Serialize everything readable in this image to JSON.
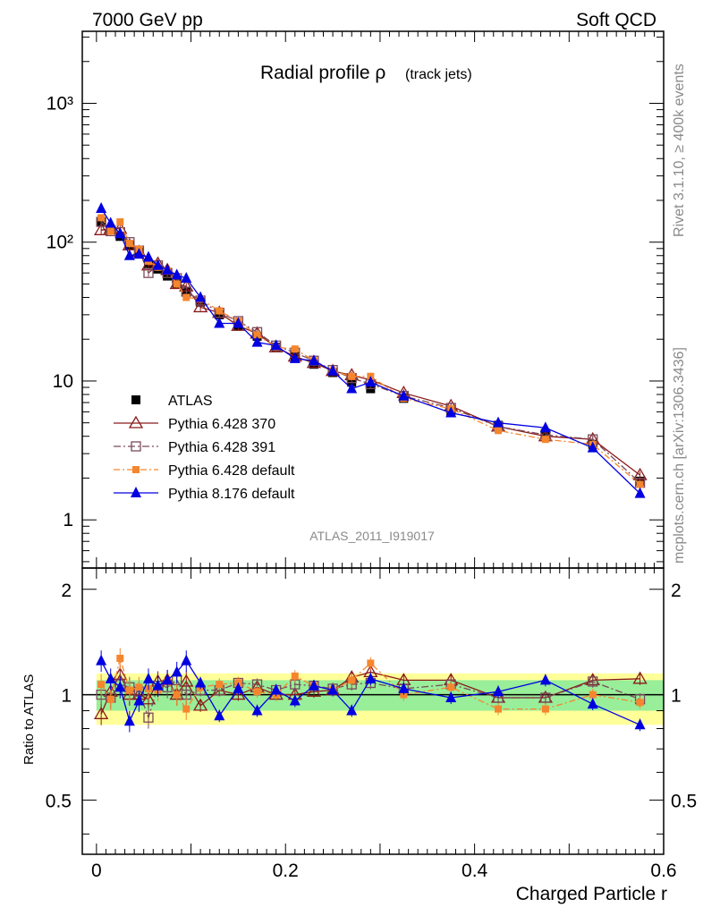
{
  "header": {
    "left": "7000 GeV pp",
    "right": "Soft QCD"
  },
  "side_text": {
    "rivet": "Rivet 3.1.10, ≥ 400k events",
    "mcplots": "mcplots.cern.ch [arXiv:1306.3436]"
  },
  "chart_data": [
    {
      "type": "line",
      "title_main": "Radial profile ρ",
      "title_sub": "(track jets)",
      "watermark": "ATLAS_2011_I919017",
      "yscale": "log",
      "xlim": [
        -0.015,
        0.6
      ],
      "ylim": [
        0.45,
        3300
      ],
      "ytick_labels": [
        "1",
        "10",
        "10²",
        "10³"
      ],
      "legend_position": "center-left",
      "colors": {
        "ATLAS": "#000000",
        "Pythia 6.428 370": "#8b1a1a",
        "Pythia 6.428 391": "#7b4a5a",
        "Pythia 6.428 default": "#f5862e",
        "Pythia 8.176 default": "#0000e0"
      },
      "x": [
        0.005,
        0.015,
        0.025,
        0.035,
        0.045,
        0.055,
        0.065,
        0.075,
        0.085,
        0.095,
        0.11,
        0.13,
        0.15,
        0.17,
        0.19,
        0.21,
        0.23,
        0.25,
        0.27,
        0.29,
        0.325,
        0.375,
        0.425,
        0.475,
        0.525,
        0.575
      ],
      "series": [
        {
          "name": "ATLAS",
          "values": [
            140,
            123,
            110,
            95,
            85,
            70,
            64,
            57,
            50,
            44,
            37,
            30,
            25,
            21,
            17.5,
            15,
            13.2,
            11.5,
            9.8,
            8.8,
            7.5,
            6,
            4.8,
            4.2,
            3.5,
            1.9
          ]
        },
        {
          "name": "Pythia 6.428 370",
          "values": [
            122,
            125,
            125,
            95,
            85,
            68,
            70,
            63,
            50,
            48,
            34,
            31,
            25,
            22,
            17.5,
            15,
            13.5,
            11.8,
            11,
            10.2,
            8.2,
            6.6,
            4.7,
            4,
            3.8,
            2.1
          ]
        },
        {
          "name": "Pythia 6.428 391",
          "values": [
            140,
            120,
            118,
            100,
            87,
            60,
            68,
            60,
            55,
            44,
            38,
            31,
            27,
            22.5,
            18,
            16,
            14,
            12,
            10.5,
            9.5,
            7.8,
            6.4,
            4.7,
            4.1,
            3.8,
            1.85
          ]
        },
        {
          "name": "Pythia 6.428 default",
          "values": [
            150,
            120,
            140,
            98,
            89,
            73,
            66,
            62,
            50,
            40,
            39,
            32,
            27,
            21.5,
            17.5,
            17,
            14,
            11.8,
            10.8,
            10.8,
            7.5,
            6.3,
            4.4,
            3.8,
            3.5,
            1.8
          ]
        },
        {
          "name": "Pythia 8.176 default",
          "values": [
            175,
            137,
            115,
            80,
            82,
            78,
            68,
            63,
            58,
            55,
            40,
            26,
            26,
            19,
            18,
            14.5,
            14,
            11.8,
            8.8,
            9.8,
            7.8,
            5.9,
            5.0,
            4.6,
            3.3,
            1.55
          ]
        }
      ]
    },
    {
      "type": "line",
      "ylabel": "Ratio to ATLAS",
      "xlabel": "Charged Particle r",
      "xlim": [
        -0.015,
        0.6
      ],
      "ylim": [
        0.35,
        2.3
      ],
      "yscale": "log",
      "xtick_labels": [
        "0",
        "0.2",
        "0.4",
        "0.6"
      ],
      "ytick_labels": [
        "0.5",
        "1",
        "2"
      ],
      "x": [
        0.005,
        0.015,
        0.025,
        0.035,
        0.045,
        0.055,
        0.065,
        0.075,
        0.085,
        0.095,
        0.11,
        0.13,
        0.15,
        0.17,
        0.19,
        0.21,
        0.23,
        0.25,
        0.27,
        0.29,
        0.325,
        0.375,
        0.425,
        0.475,
        0.525,
        0.575
      ],
      "series": [
        {
          "name": "Pythia 6.428 370",
          "values": [
            0.88,
            1.02,
            1.14,
            1.0,
            1.0,
            0.97,
            1.09,
            1.1,
            1.0,
            1.09,
            0.93,
            1.03,
            1.0,
            1.05,
            1.0,
            1.0,
            1.02,
            1.03,
            1.12,
            1.16,
            1.1,
            1.1,
            0.98,
            0.98,
            1.1,
            1.11
          ]
        },
        {
          "name": "Pythia 6.428 391",
          "values": [
            1.0,
            0.98,
            1.07,
            1.05,
            1.02,
            0.86,
            1.06,
            1.05,
            1.1,
            1.0,
            1.03,
            1.03,
            1.08,
            1.07,
            1.03,
            1.07,
            1.06,
            1.04,
            1.07,
            1.08,
            1.04,
            1.07,
            0.98,
            0.98,
            1.09,
            0.97
          ]
        },
        {
          "name": "Pythia 6.428 default",
          "values": [
            1.07,
            0.97,
            1.27,
            1.03,
            1.05,
            1.04,
            1.03,
            1.09,
            1.0,
            0.91,
            1.05,
            1.07,
            1.08,
            1.02,
            1.0,
            1.13,
            1.06,
            1.03,
            1.1,
            1.23,
            1.0,
            1.05,
            0.91,
            0.91,
            1.0,
            0.95
          ]
        },
        {
          "name": "Pythia 8.176 default",
          "values": [
            1.25,
            1.11,
            1.05,
            0.84,
            0.96,
            1.11,
            1.06,
            1.1,
            1.16,
            1.25,
            1.08,
            0.87,
            1.04,
            0.9,
            1.03,
            0.96,
            1.06,
            1.03,
            0.9,
            1.11,
            1.04,
            0.98,
            1.02,
            1.1,
            0.94,
            0.82
          ]
        }
      ],
      "band_inner": [
        0.9,
        1.1
      ],
      "band_outer": [
        0.82,
        1.15
      ]
    }
  ]
}
